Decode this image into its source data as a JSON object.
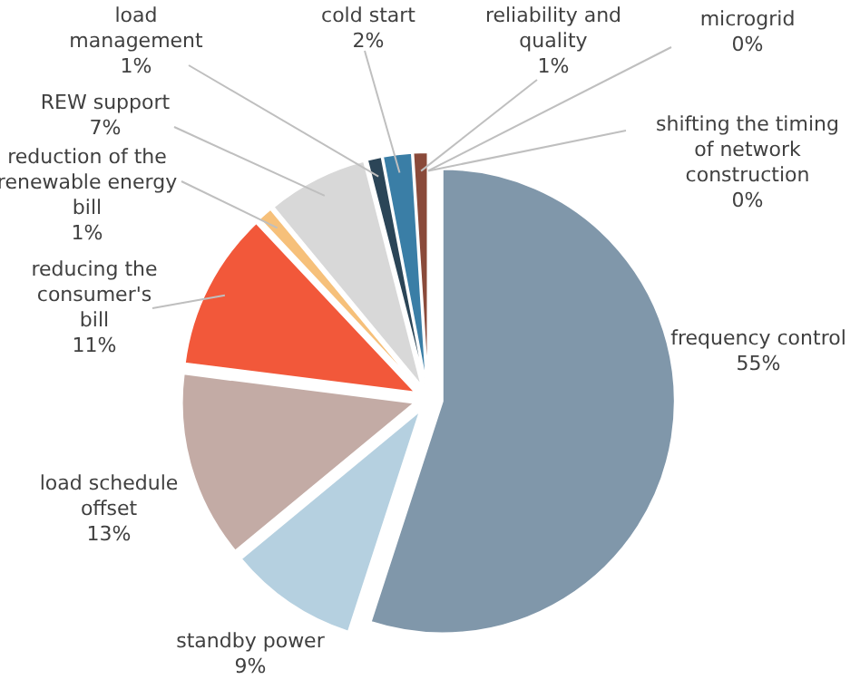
{
  "chart_data": {
    "type": "pie",
    "categories": [
      "frequency  control",
      "standby power",
      "load schedule offset",
      "reducing the consumer's bill",
      "reduction of the renewable energy bill",
      "REW support",
      "load management",
      "cold start",
      "reliability and quality",
      "microgrid",
      "shifting the timing of network construction"
    ],
    "values": [
      55,
      9,
      13,
      11,
      1,
      7,
      1,
      2,
      1,
      0,
      0
    ],
    "value_labels": [
      "55%",
      "9%",
      "13%",
      "11%",
      "1%",
      "7%",
      "1%",
      "2%",
      "1%",
      "0%",
      "0%"
    ],
    "colors": [
      "#8097aa",
      "#b5d0e0",
      "#c3aba5",
      "#f2583a",
      "#f6c07a",
      "#d8d8d8",
      "#2b4557",
      "#3a7ea6",
      "#8a4a3a",
      null,
      null
    ]
  }
}
